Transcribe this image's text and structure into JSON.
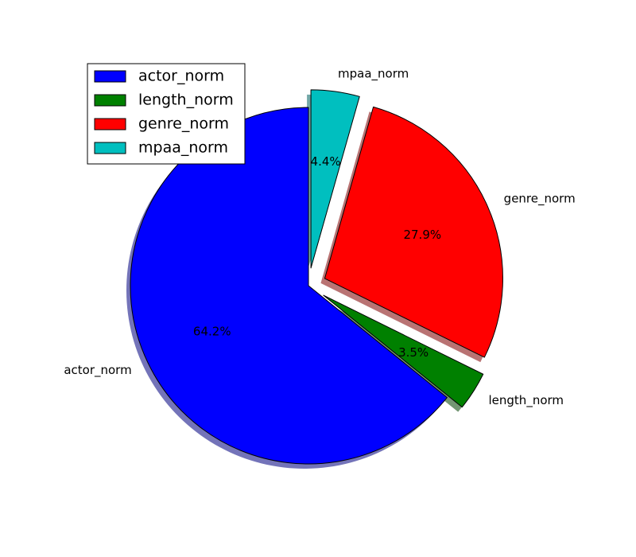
{
  "chart_data": {
    "type": "pie",
    "slices": [
      {
        "label": "actor_norm",
        "value": 64.2,
        "pct_label": "64.2%",
        "color": "#0000ff",
        "explode": 0.0
      },
      {
        "label": "length_norm",
        "value": 3.5,
        "pct_label": "3.5%",
        "color": "#008000",
        "explode": 0.1
      },
      {
        "label": "genre_norm",
        "value": 27.9,
        "pct_label": "27.9%",
        "color": "#ff0000",
        "explode": 0.1
      },
      {
        "label": "mpaa_norm",
        "value": 4.4,
        "pct_label": "4.4%",
        "color": "#00bfbf",
        "explode": 0.1
      }
    ],
    "start_angle_deg": 90,
    "shadow": true,
    "legend": {
      "placement": "upper-left",
      "entries": [
        "actor_norm",
        "length_norm",
        "genre_norm",
        "mpaa_norm"
      ]
    }
  }
}
